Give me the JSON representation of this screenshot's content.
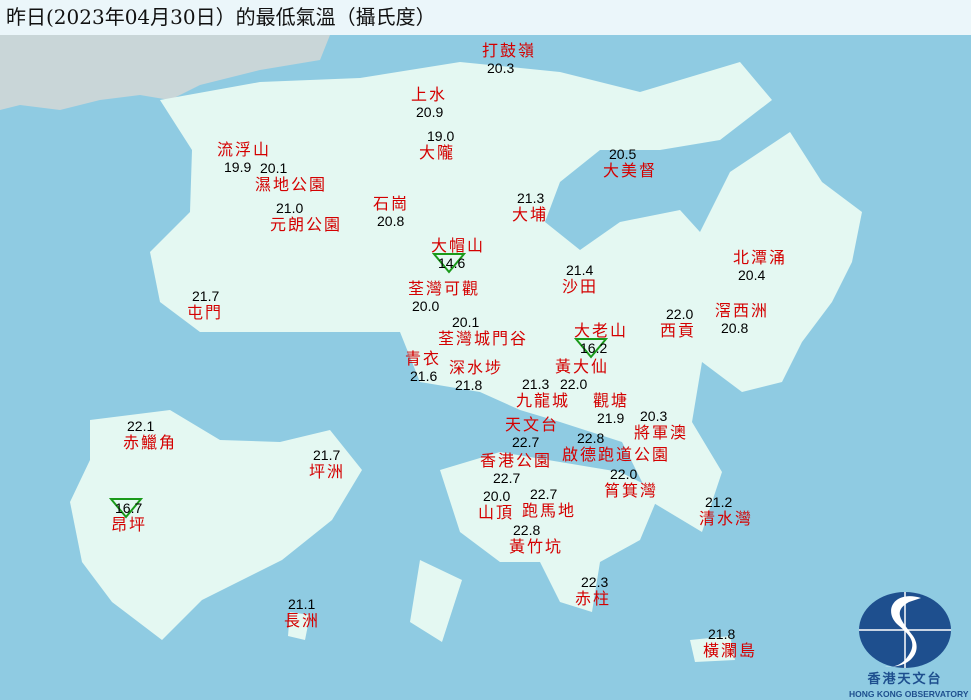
{
  "title": "昨日(2023年04月30日）的最低氣溫（攝氏度）",
  "colors": {
    "sea": "#8fcbe2",
    "land": "#e4f8f2",
    "station_name": "#d40000",
    "temperature": "#000000",
    "minimum_marker": "#1a9a1a",
    "logo": "#1e4f8e"
  },
  "stations": [
    {
      "name": "打鼓嶺",
      "temp": "20.3"
    },
    {
      "name": "上水",
      "temp": "20.9"
    },
    {
      "name": "大隴",
      "temp": "19.0"
    },
    {
      "name": "流浮山",
      "temp": "19.9"
    },
    {
      "name": "濕地公園",
      "temp": "20.1"
    },
    {
      "name": "元朗公園",
      "temp": "21.0"
    },
    {
      "name": "石崗",
      "temp": "20.8"
    },
    {
      "name": "大美督",
      "temp": "20.5"
    },
    {
      "name": "大埔",
      "temp": "21.3"
    },
    {
      "name": "大帽山",
      "temp": "14.6",
      "minimum": true
    },
    {
      "name": "荃灣可觀",
      "temp": "20.0"
    },
    {
      "name": "荃灣城門谷",
      "temp": "20.1"
    },
    {
      "name": "屯門",
      "temp": "21.7"
    },
    {
      "name": "沙田",
      "temp": "21.4"
    },
    {
      "name": "北潭涌",
      "temp": "20.4"
    },
    {
      "name": "滘西洲",
      "temp": "20.8"
    },
    {
      "name": "西貢",
      "temp": "22.0"
    },
    {
      "name": "大老山",
      "temp": "16.2",
      "minimum": true
    },
    {
      "name": "青衣",
      "temp": "21.6"
    },
    {
      "name": "深水埗",
      "temp": "21.8"
    },
    {
      "name": "黃大仙",
      "temp": "22.0"
    },
    {
      "name": "九龍城",
      "temp": "21.3"
    },
    {
      "name": "觀塘",
      "temp": "21.9"
    },
    {
      "name": "將軍澳",
      "temp": "20.3"
    },
    {
      "name": "天文台",
      "temp": "22.7"
    },
    {
      "name": "啟德跑道公園",
      "temp": "22.8"
    },
    {
      "name": "香港公園",
      "temp": "22.7"
    },
    {
      "name": "筲箕灣",
      "temp": "22.0"
    },
    {
      "name": "跑馬地",
      "temp": "22.7"
    },
    {
      "name": "山頂",
      "temp": "20.0"
    },
    {
      "name": "黃竹坑",
      "temp": "22.8"
    },
    {
      "name": "清水灣",
      "temp": "21.2"
    },
    {
      "name": "赤鱲角",
      "temp": "22.1"
    },
    {
      "name": "坪洲",
      "temp": "21.7"
    },
    {
      "name": "昂坪",
      "temp": "16.7",
      "minimum": true
    },
    {
      "name": "赤柱",
      "temp": "22.3"
    },
    {
      "name": "長洲",
      "temp": "21.1"
    },
    {
      "name": "橫瀾島",
      "temp": "21.8"
    }
  ],
  "logo": {
    "chinese": "香港天文台",
    "english": "HONG KONG OBSERVATORY"
  }
}
